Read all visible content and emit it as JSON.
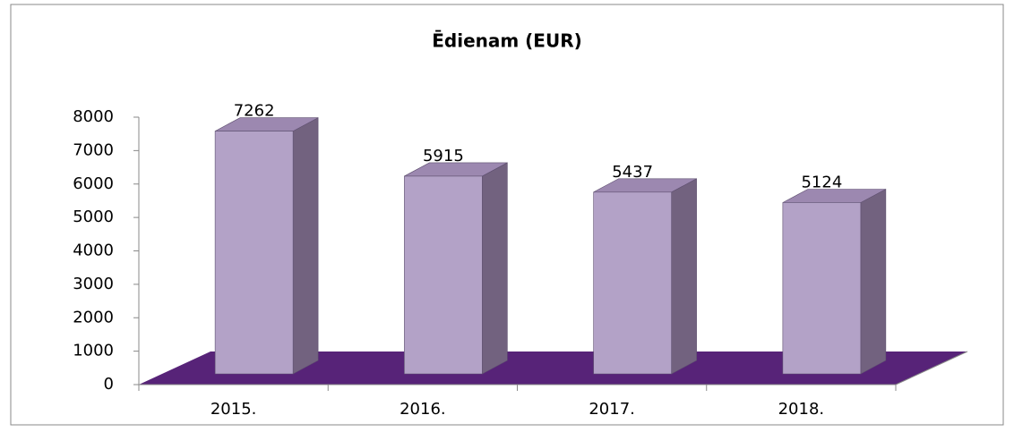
{
  "chart_data": {
    "type": "bar3d",
    "title": "Ēdienam (EUR)",
    "categories": [
      "2015.",
      "2016.",
      "2017.",
      "2018."
    ],
    "values": [
      7262,
      5915,
      5437,
      5124
    ],
    "color": "#b3a2c7",
    "floor_color": "#572378",
    "ylim": [
      0,
      8000
    ],
    "yticks": [
      0,
      1000,
      2000,
      3000,
      4000,
      5000,
      6000,
      7000,
      8000
    ]
  }
}
